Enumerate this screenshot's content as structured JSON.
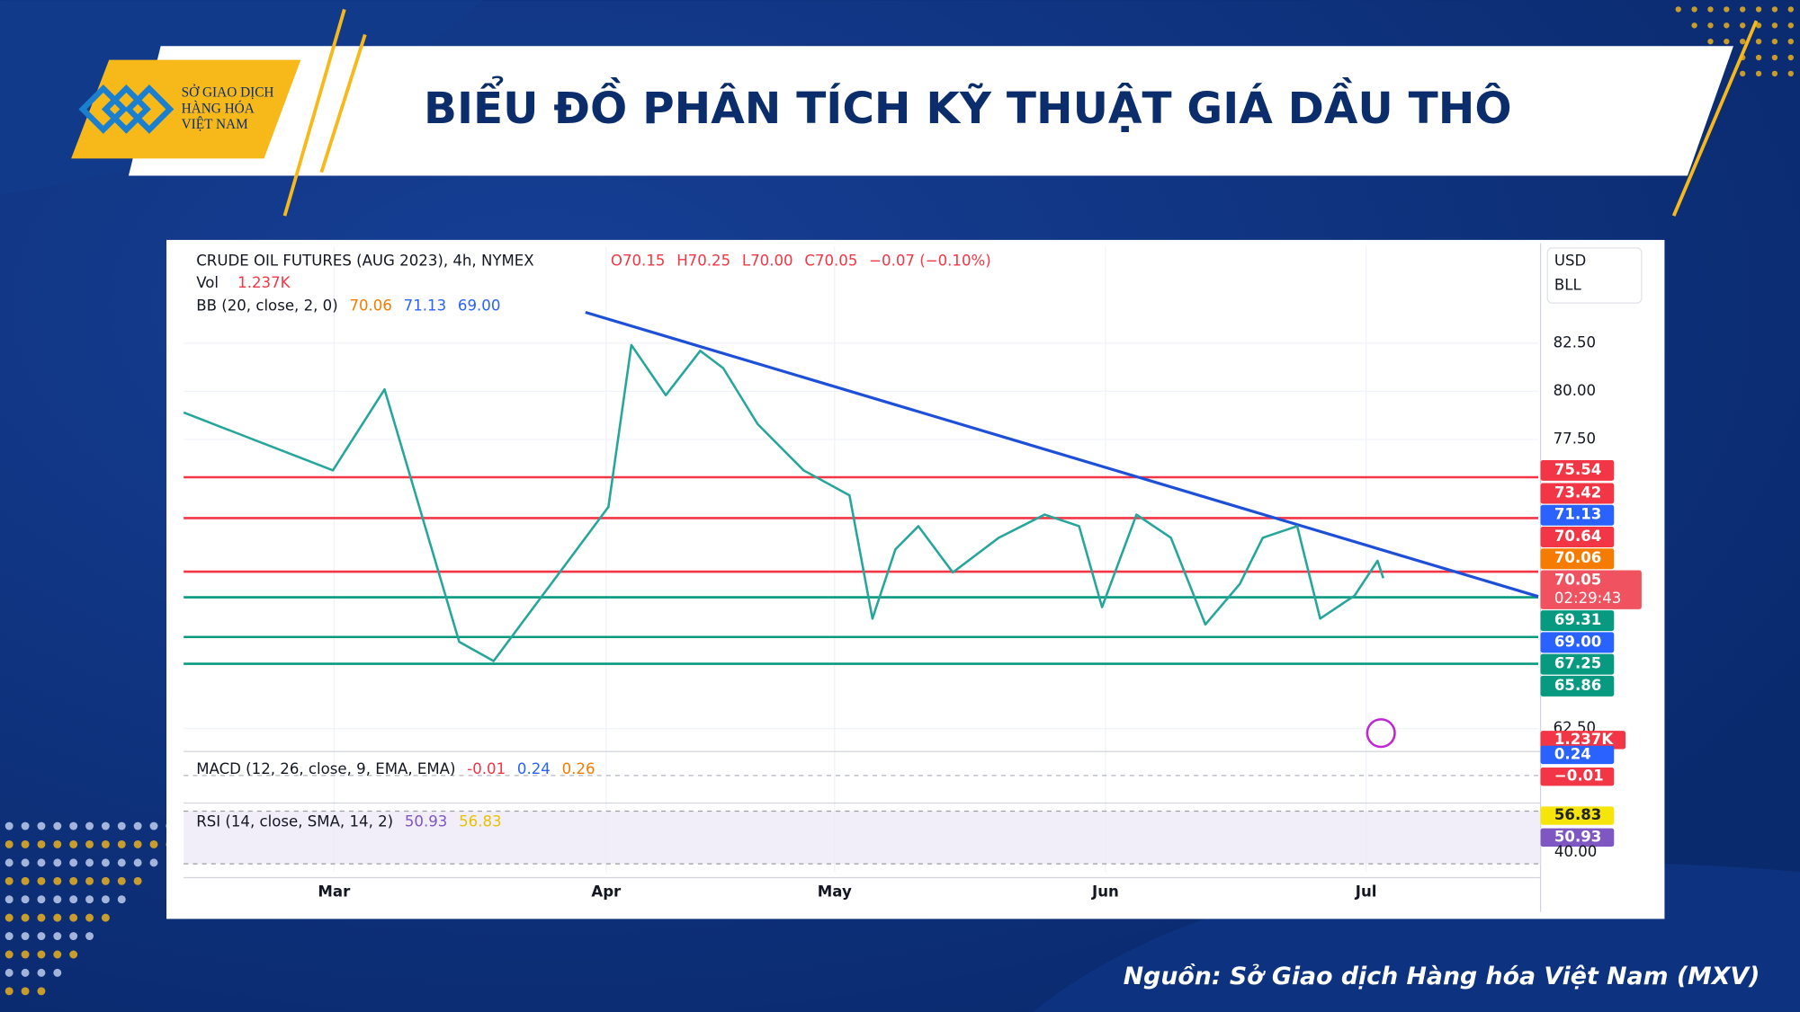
{
  "header": {
    "title": "BIỂU ĐỒ PHÂN TÍCH KỸ THUẬT GIÁ DẦU THÔ",
    "logo": [
      "SỞ GIAO DỊCH",
      "HÀNG HÓA",
      "VIỆT NAM"
    ]
  },
  "source": "Nguồn: Sở Giao dịch Hàng hóa Việt Nam (MXV)",
  "chart_data": {
    "type": "line",
    "title": "CRUDE OIL FUTURES (AUG 2023), 4h, NYMEX",
    "ohlc": [
      {
        "text": "O70.15",
        "color": "#f23645"
      },
      {
        "text": "H70.25",
        "color": "#f23645"
      },
      {
        "text": "L70.00",
        "color": "#f23645"
      },
      {
        "text": "C70.05",
        "color": "#f23645"
      },
      {
        "text": "−0.07 (−0.10%)",
        "color": "#f23645"
      }
    ],
    "volume": {
      "label": "Vol",
      "value": "1.237K"
    },
    "bb": {
      "label": "BB (20, close, 2, 0)",
      "values": [
        {
          "text": "70.06",
          "color": "#f57c00"
        },
        {
          "text": "71.13",
          "color": "#2962ff"
        },
        {
          "text": "69.00",
          "color": "#2962ff"
        }
      ]
    },
    "currency": [
      "USD",
      "BLL"
    ],
    "x": [
      0,
      13,
      17.5,
      24,
      27,
      32,
      37,
      39,
      42,
      45,
      47,
      50,
      54,
      58,
      60,
      62,
      64,
      67,
      71,
      75,
      78,
      80,
      83,
      86,
      89,
      92,
      94,
      97,
      99,
      102,
      104,
      104.5
    ],
    "series": [
      {
        "name": "Crude Oil",
        "color": "#26a69a",
        "values": [
          78.9,
          75.9,
          80.1,
          67,
          66,
          70,
          74,
          82.4,
          79.8,
          82.1,
          81.2,
          78.3,
          75.9,
          74.6,
          68.2,
          71.8,
          73,
          70.6,
          72.4,
          73.6,
          73,
          68.8,
          73.6,
          72.4,
          67.9,
          70,
          72.4,
          73,
          68.2,
          69.4,
          71.2,
          70.3
        ]
      }
    ],
    "trendline": {
      "color": "#1e4fd8",
      "x": [
        35,
        118
      ],
      "values": [
        84.1,
        69.35
      ]
    },
    "xlim": [
      0,
      118
    ],
    "ylim": [
      62.5,
      87.5
    ],
    "xticks": [
      {
        "value": 13.1,
        "label": "Mar"
      },
      {
        "value": 36.8,
        "label": "Apr"
      },
      {
        "value": 56.7,
        "label": "May"
      },
      {
        "value": 80.3,
        "label": "Jun"
      },
      {
        "value": 103,
        "label": "Jul"
      }
    ],
    "yticks": [
      {
        "value": 62.5,
        "label": "62.50"
      },
      {
        "value": 77.5,
        "label": "77.50"
      },
      {
        "value": 80,
        "label": "80.00"
      },
      {
        "value": 82.5,
        "label": "82.50"
      }
    ],
    "levels": [
      {
        "value": 75.54,
        "color": "#f23645",
        "line": true
      },
      {
        "value": 73.42,
        "color": "#f23645",
        "line": true
      },
      {
        "value": 71.13,
        "color": "#2962ff",
        "line": false
      },
      {
        "value": 70.64,
        "color": "#f23645",
        "line": true
      },
      {
        "value": 70.06,
        "color": "#f57c00",
        "line": false
      },
      {
        "value": 70.05,
        "color": "#f0535f",
        "line": false,
        "countdown": "02:29:43"
      },
      {
        "value": 69.31,
        "color": "#089981",
        "line": true
      },
      {
        "value": 69,
        "label": "69.00",
        "color": "#2962ff",
        "line": false
      },
      {
        "value": 67.25,
        "color": "#089981",
        "line": true
      },
      {
        "value": 65.86,
        "color": "#089981",
        "line": true
      }
    ],
    "volume_tag": {
      "text": "1.237K",
      "color": "#f23645"
    },
    "macd": {
      "label": "MACD (12, 26, close, 9, EMA, EMA)",
      "values": [
        {
          "text": "-0.01",
          "color": "#f23645"
        },
        {
          "text": "0.24",
          "color": "#2962ff"
        },
        {
          "text": "0.26",
          "color": "#f57c00"
        }
      ],
      "tags": [
        {
          "text": "0.24",
          "color": "#2962ff"
        },
        {
          "text": "−0.01",
          "color": "#f23645"
        }
      ]
    },
    "rsi": {
      "label": "RSI (14, close, SMA, 14, 2)",
      "values": [
        {
          "text": "50.93",
          "color": "#7e57c2"
        },
        {
          "text": "56.83",
          "color": "#e6c200"
        }
      ],
      "tags": [
        {
          "text": "56.83",
          "color": "#f5e50a",
          "ink": "#222"
        },
        {
          "text": "50.93",
          "color": "#7e57c2",
          "ink": "#fff"
        }
      ],
      "tick": "40.00"
    }
  }
}
